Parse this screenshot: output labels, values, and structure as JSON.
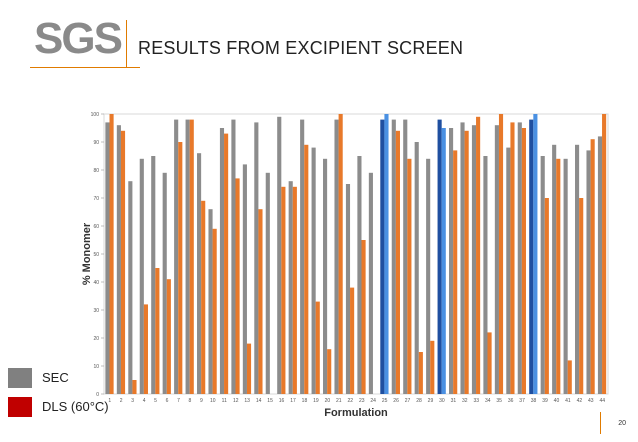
{
  "slide": {
    "logo_text": "SGS",
    "title": "RESULTS FROM EXCIPIENT SCREEN",
    "page_number": "20"
  },
  "legend": {
    "sec_label": "SEC",
    "dls_label": "DLS (60°C)",
    "sec_color": "#808080",
    "dls_color": "#c00000"
  },
  "colors": {
    "sec_bar": "#8c8c8c",
    "dls_bar": "#e8792a",
    "highlight_sec": "#1f4fa0",
    "highlight_dls": "#4a90e2",
    "accent": "#e07b00"
  },
  "chart_data": {
    "type": "bar",
    "title": "",
    "xlabel": "Formulation",
    "ylabel": "% Monomer",
    "ylim": [
      0,
      100
    ],
    "yticks": [
      0,
      10,
      20,
      30,
      40,
      50,
      60,
      70,
      80,
      90,
      100
    ],
    "categories": [
      "1",
      "2",
      "3",
      "4",
      "5",
      "6",
      "7",
      "8",
      "9",
      "10",
      "11",
      "12",
      "13",
      "14",
      "15",
      "16",
      "17",
      "18",
      "19",
      "20",
      "21",
      "22",
      "23",
      "24",
      "25",
      "26",
      "27",
      "28",
      "29",
      "30",
      "31",
      "32",
      "33",
      "34",
      "35",
      "36",
      "37",
      "38",
      "39",
      "40",
      "41",
      "42",
      "43",
      "44"
    ],
    "highlighted": [
      "25",
      "30",
      "38"
    ],
    "series": [
      {
        "name": "SEC",
        "values": [
          97,
          96,
          76,
          84,
          85,
          79,
          98,
          98,
          86,
          66,
          95,
          98,
          82,
          97,
          79,
          99,
          76,
          98,
          88,
          84,
          98,
          75,
          85,
          79,
          98,
          98,
          98,
          90,
          84,
          98,
          95,
          97,
          96,
          85,
          96,
          88,
          97,
          98,
          85,
          89,
          84,
          89,
          87,
          92
        ]
      },
      {
        "name": "DLS (60°C)",
        "values": [
          100,
          94,
          5,
          32,
          45,
          41,
          90,
          98,
          69,
          59,
          93,
          77,
          18,
          66,
          0,
          74,
          74,
          89,
          33,
          16,
          100,
          38,
          55,
          0,
          100,
          94,
          84,
          15,
          19,
          95,
          87,
          94,
          99,
          22,
          100,
          97,
          95,
          100,
          70,
          84,
          12,
          70,
          91,
          100
        ]
      }
    ]
  }
}
